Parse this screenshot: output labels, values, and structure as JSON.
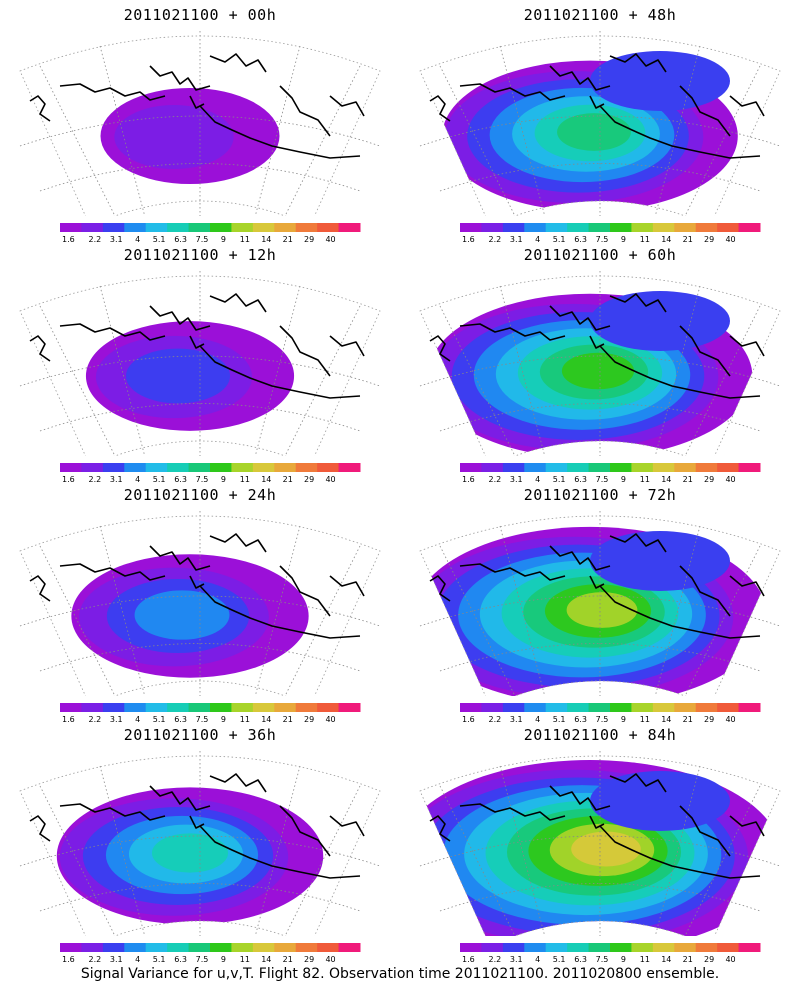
{
  "colorbar": {
    "labels": [
      "1.6",
      "2.2",
      "3.1",
      "4",
      "5.1",
      "6.3",
      "7.5",
      "9",
      "11",
      "14",
      "21",
      "29",
      "40"
    ],
    "colors": [
      "#9b10d8",
      "#7a1fe6",
      "#3a3ff0",
      "#1f8cf0",
      "#22bce8",
      "#16cdb6",
      "#18c878",
      "#2ec81a",
      "#a8d42a",
      "#d8c83a",
      "#e8a83a",
      "#f07a3a",
      "#f05a3a",
      "#f01a7a"
    ]
  },
  "panels": [
    {
      "title": "2011021100 + 00h",
      "lead_hours": 0
    },
    {
      "title": "2011021100 + 48h",
      "lead_hours": 48
    },
    {
      "title": "2011021100 + 12h",
      "lead_hours": 12
    },
    {
      "title": "2011021100 + 60h",
      "lead_hours": 60
    },
    {
      "title": "2011021100 + 24h",
      "lead_hours": 24
    },
    {
      "title": "2011021100 + 72h",
      "lead_hours": 72
    },
    {
      "title": "2011021100 + 36h",
      "lead_hours": 36
    },
    {
      "title": "2011021100 + 84h",
      "lead_hours": 84
    }
  ],
  "footer": "Signal Variance for u,v,T. Flight 82. Observation time 2011021100. 2011020800 ensemble."
}
